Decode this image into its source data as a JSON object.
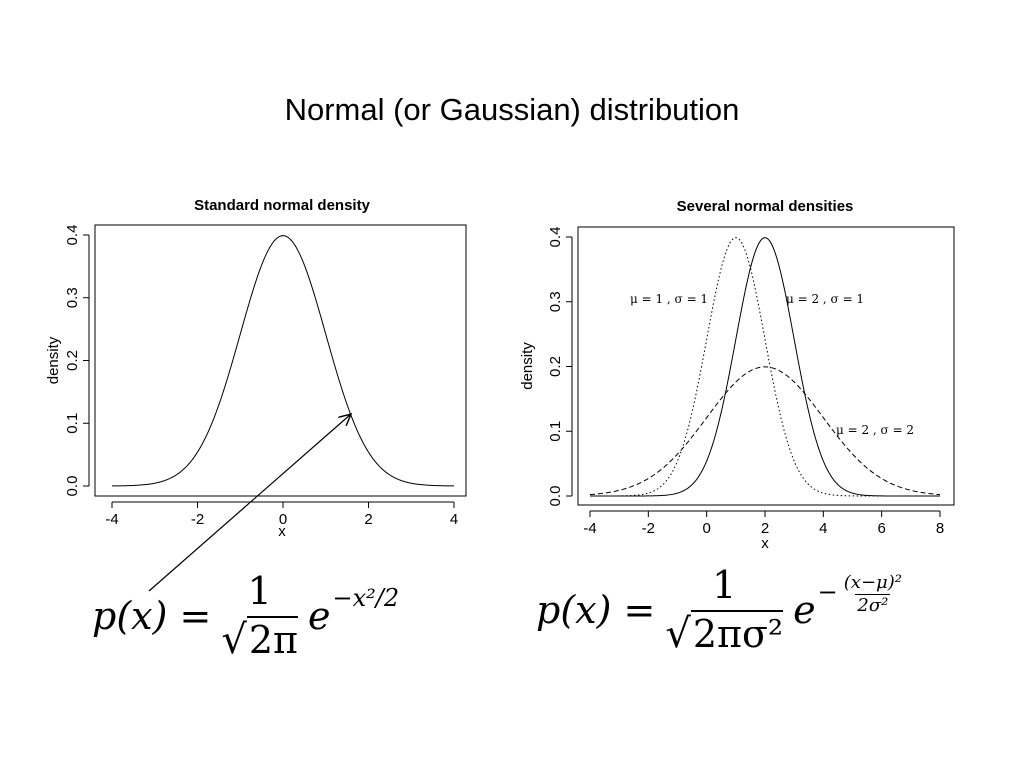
{
  "title": "Normal (or Gaussian) distribution",
  "chart_data": [
    {
      "type": "line",
      "title": "Standard normal density",
      "xlabel": "x",
      "ylabel": "density",
      "xlim": [
        -4,
        4
      ],
      "ylim": [
        0,
        0.4
      ],
      "xticks": [
        -4,
        -2,
        0,
        2,
        4
      ],
      "yticks": [
        0.0,
        0.1,
        0.2,
        0.3,
        0.4
      ],
      "xtick_labels": [
        "-4",
        "-2",
        "0",
        "2",
        "4"
      ],
      "ytick_labels": [
        "0.0",
        "0.1",
        "0.2",
        "0.3",
        "0.4"
      ],
      "grid": false,
      "series": [
        {
          "mu": 0,
          "sigma": 1,
          "style": "solid",
          "x_range": [
            -4,
            4
          ]
        }
      ]
    },
    {
      "type": "line",
      "title": "Several normal densities",
      "xlabel": "x",
      "ylabel": "density",
      "xlim": [
        -4,
        8
      ],
      "ylim": [
        0,
        0.4
      ],
      "xticks": [
        -4,
        -2,
        0,
        2,
        4,
        6,
        8
      ],
      "yticks": [
        0.0,
        0.1,
        0.2,
        0.3,
        0.4
      ],
      "xtick_labels": [
        "-4",
        "-2",
        "0",
        "2",
        "4",
        "6",
        "8"
      ],
      "ytick_labels": [
        "0.0",
        "0.1",
        "0.2",
        "0.3",
        "0.4"
      ],
      "grid": false,
      "series": [
        {
          "mu": 1,
          "sigma": 1,
          "style": "dotted",
          "label": "μ = 1 , σ = 1",
          "x_range": [
            -4,
            8
          ]
        },
        {
          "mu": 2,
          "sigma": 1,
          "style": "solid",
          "label": "μ = 2 , σ = 1",
          "x_range": [
            -4,
            8
          ]
        },
        {
          "mu": 2,
          "sigma": 2,
          "style": "dashed",
          "label": "μ = 2 , σ = 2",
          "x_range": [
            -4,
            8
          ]
        }
      ]
    }
  ],
  "formulas": {
    "left": {
      "lhs": "p(x) =",
      "numerator": "1",
      "radical": "√",
      "radicand": "2π",
      "base": "e",
      "exponent": "−x²/2"
    },
    "right": {
      "lhs": "p(x) =",
      "numerator": "1",
      "radical": "√",
      "radicand": "2πσ²",
      "base": "e",
      "exp_sign": "−",
      "exp_numerator": "(x−μ)²",
      "exp_denominator": "2σ²"
    }
  }
}
